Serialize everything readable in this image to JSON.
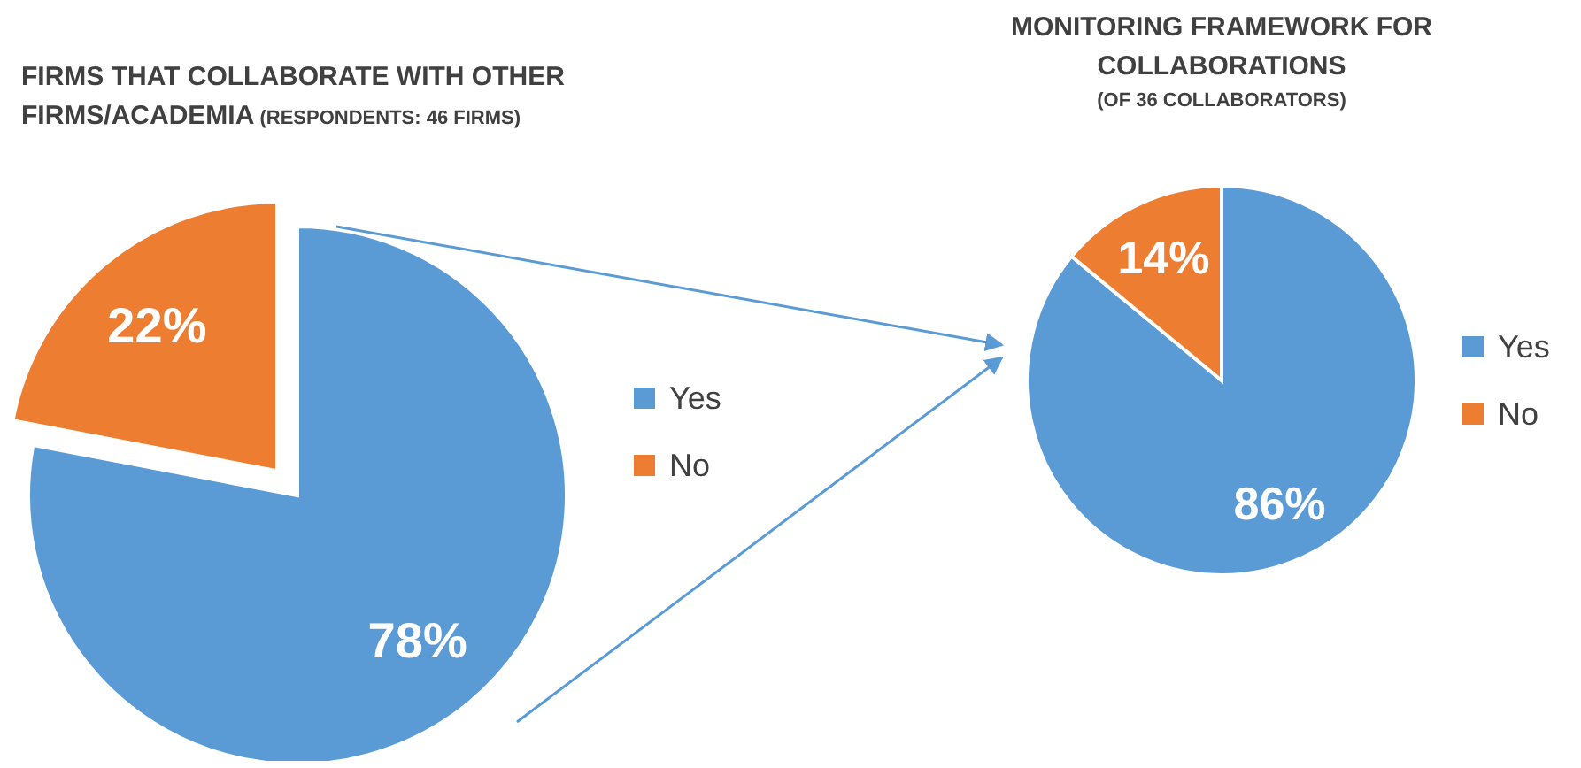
{
  "chart_data": [
    {
      "type": "pie",
      "title": "FIRMS THAT COLLABORATE WITH OTHER FIRMS/ACADEMIA",
      "subtitle": "(RESPONDENTS: 46 FIRMS)",
      "categories": [
        "Yes",
        "No"
      ],
      "values": [
        78,
        22
      ],
      "value_labels": [
        "78%",
        "22%"
      ],
      "colors": [
        "#5b9bd5",
        "#ed7d31"
      ],
      "legend": "right"
    },
    {
      "type": "pie",
      "title": "MONITORING FRAMEWORK FOR COLLABORATIONS",
      "subtitle": "(OF 36 COLLABORATORS)",
      "categories": [
        "Yes",
        "No"
      ],
      "values": [
        86,
        14
      ],
      "value_labels": [
        "86%",
        "14%"
      ],
      "colors": [
        "#5b9bd5",
        "#ed7d31"
      ],
      "legend": "right"
    }
  ]
}
